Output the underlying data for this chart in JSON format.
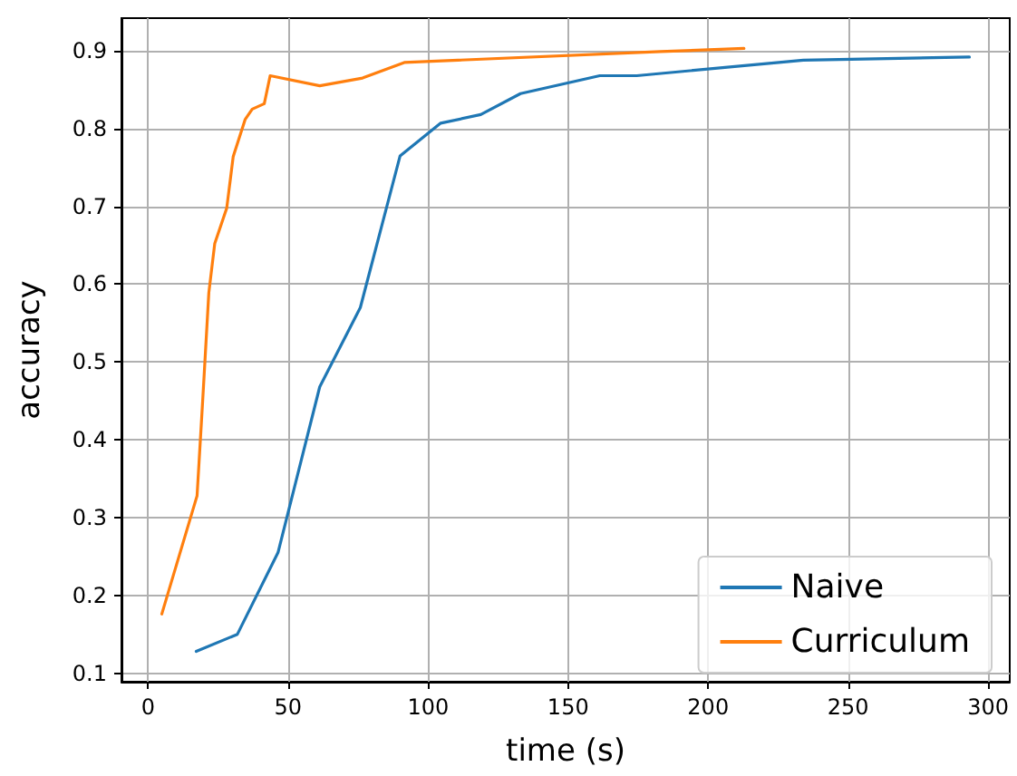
{
  "chart_data": {
    "type": "line",
    "xlabel": "time (s)",
    "ylabel": "accuracy",
    "xlim": [
      -9.5,
      307.7
    ],
    "xticks": [
      0,
      50,
      100,
      150,
      200,
      250,
      300
    ],
    "ylim": [
      0.089,
      0.942
    ],
    "yticks": [
      0.1,
      0.2,
      0.3,
      0.4,
      0.5,
      0.6,
      0.7,
      0.8,
      0.9
    ],
    "grid": true,
    "legend": "bottom right",
    "marker": "none",
    "line_style": "solid",
    "series": [
      {
        "name": "Naive",
        "color": "#1f77b4",
        "x": [
          17.2,
          31.9,
          46.4,
          61.3,
          75.8,
          90.0,
          104.5,
          118.8,
          133,
          161.3,
          174.5,
          234,
          293.3
        ],
        "values": [
          0.128,
          0.15,
          0.255,
          0.468,
          0.57,
          0.765,
          0.807,
          0.818,
          0.845,
          0.868,
          0.868,
          0.888,
          0.892
        ]
      },
      {
        "name": "Curriculum",
        "color": "#ff7f0e",
        "x": [
          4.9,
          17.5,
          19.5,
          21.7,
          23.8,
          28.1,
          30.4,
          34.7,
          37.2,
          41.5,
          43.6,
          61.3,
          76.6,
          91.5,
          110.7,
          183,
          212.8
        ],
        "values": [
          0.176,
          0.328,
          0.45,
          0.589,
          0.652,
          0.698,
          0.764,
          0.812,
          0.825,
          0.832,
          0.868,
          0.855,
          0.865,
          0.885,
          0.888,
          0.899,
          0.903
        ]
      }
    ]
  }
}
